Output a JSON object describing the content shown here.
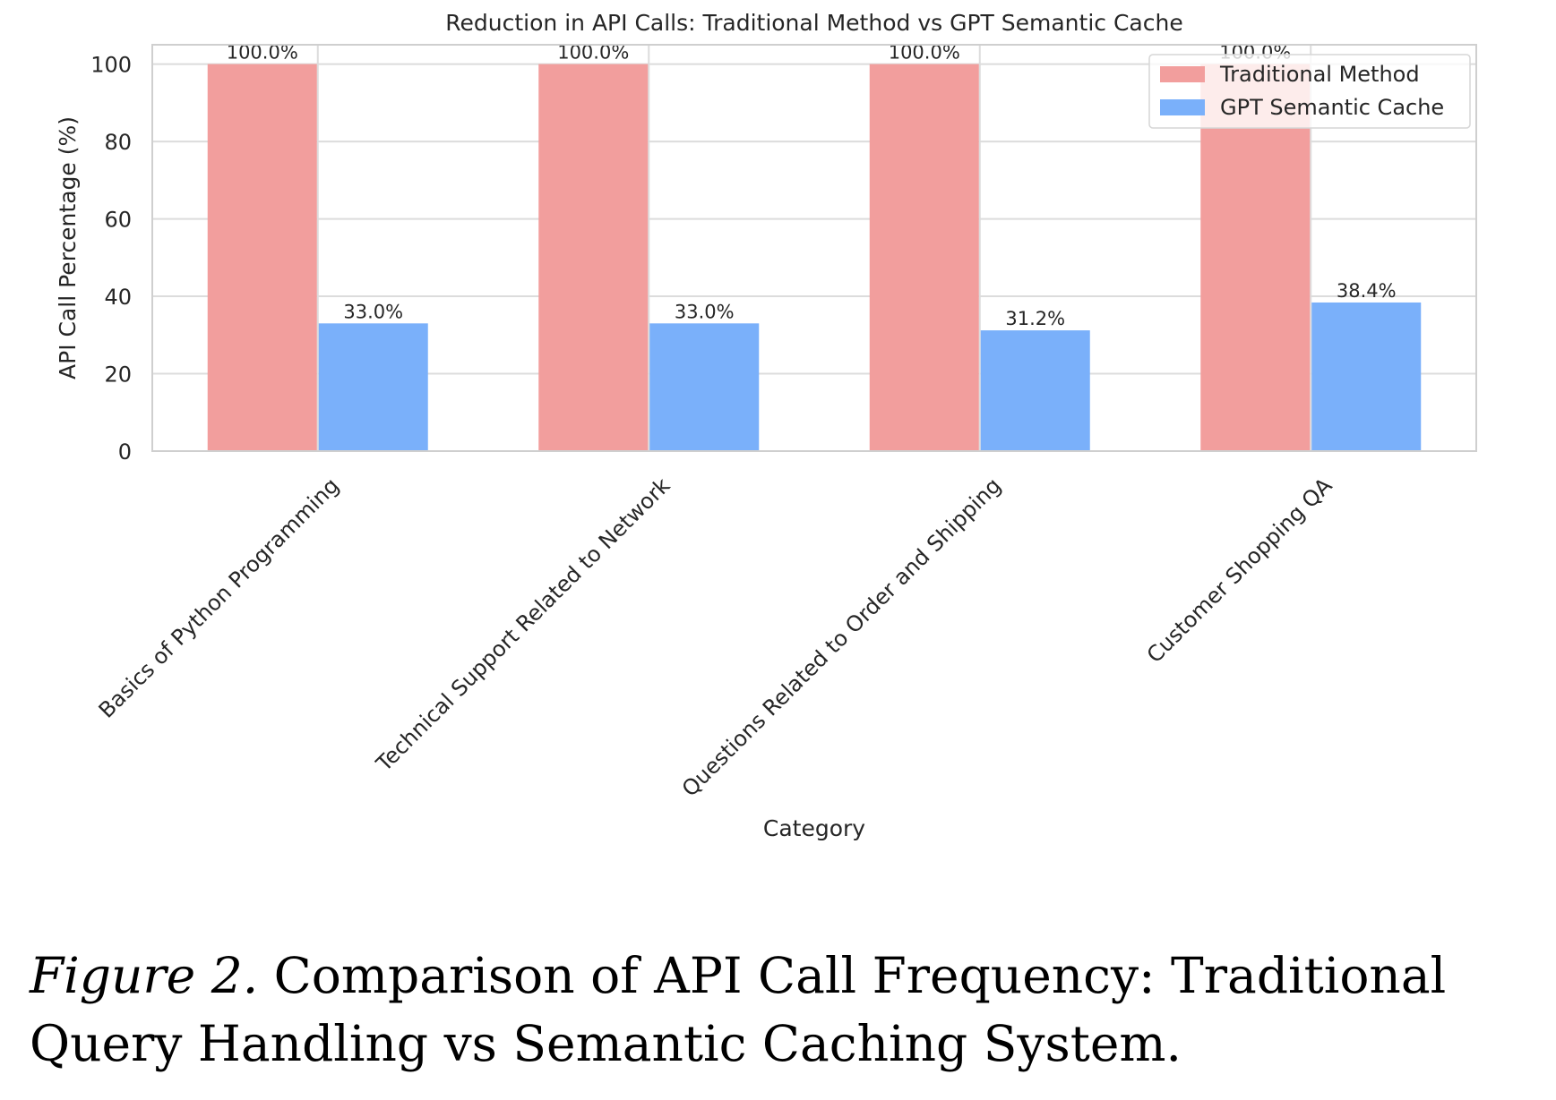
{
  "chart_data": {
    "type": "bar",
    "title": "Reduction in API Calls: Traditional Method vs GPT Semantic Cache",
    "xlabel": "Category",
    "ylabel": "API Call Percentage (%)",
    "ylim": [
      0,
      105
    ],
    "yticks": [
      0,
      20,
      40,
      60,
      80,
      100
    ],
    "grid": true,
    "legend_position": "top-right",
    "categories": [
      "Basics of Python Programming",
      "Technical Support Related to Network",
      "Questions Related to Order and Shipping",
      "Customer Shopping QA"
    ],
    "series": [
      {
        "name": "Traditional Method",
        "color": "#f29e9d",
        "values": [
          100.0,
          100.0,
          100.0,
          100.0
        ],
        "data_labels": [
          "100.0%",
          "100.0%",
          "100.0%",
          "100.0%"
        ]
      },
      {
        "name": "GPT Semantic Cache",
        "color": "#7ab0fa",
        "values": [
          33.0,
          33.0,
          31.2,
          38.4
        ],
        "data_labels": [
          "33.0%",
          "33.0%",
          "31.2%",
          "38.4%"
        ]
      }
    ]
  },
  "caption": {
    "lead": "Figure 2.",
    "text": " Comparison of API Call Frequency: Traditional Query Handling vs Semantic Caching System."
  }
}
